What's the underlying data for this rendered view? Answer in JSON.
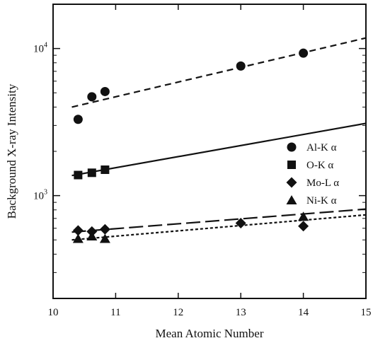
{
  "chart_data": {
    "type": "scatter",
    "title": "",
    "xlabel": "Mean Atomic Number",
    "ylabel": "Background X-ray Intensity",
    "xlim": [
      10,
      15
    ],
    "ylim": [
      200,
      20000
    ],
    "y_scale": "log",
    "x_ticks": [
      "10",
      "11",
      "12",
      "13",
      "14",
      "15"
    ],
    "y_ticks": [
      {
        "value": 1000,
        "base": "10",
        "exp": "3"
      },
      {
        "value": 10000,
        "base": "10",
        "exp": "4"
      }
    ],
    "grid": false,
    "legend_position": "right-middle",
    "series": [
      {
        "name": "Al-K α",
        "marker": "circle",
        "line_style": "short-dash",
        "x": [
          10.4,
          10.62,
          10.83,
          13.0,
          14.0
        ],
        "y": [
          3300,
          4700,
          5100,
          7600,
          9300
        ],
        "fit": [
          [
            10.3,
            4000
          ],
          [
            15.0,
            11800
          ]
        ]
      },
      {
        "name": "O-K α",
        "marker": "square",
        "line_style": "solid",
        "x": [
          10.4,
          10.62,
          10.83
        ],
        "y": [
          1380,
          1430,
          1500
        ],
        "fit": [
          [
            10.3,
            1370
          ],
          [
            15.0,
            3100
          ]
        ]
      },
      {
        "name": "Mo-L α",
        "marker": "diamond",
        "line_style": "long-dash",
        "x": [
          10.4,
          10.62,
          10.83,
          13.0,
          14.0
        ],
        "y": [
          580,
          570,
          590,
          650,
          620
        ],
        "fit": [
          [
            10.3,
            565
          ],
          [
            15.0,
            810
          ]
        ]
      },
      {
        "name": "Ni-K α",
        "marker": "triangle",
        "line_style": "dotted",
        "x": [
          10.4,
          10.62,
          10.83,
          14.0
        ],
        "y": [
          510,
          530,
          510,
          720
        ],
        "fit": [
          [
            10.3,
            500
          ],
          [
            15.0,
            740
          ]
        ]
      }
    ]
  }
}
